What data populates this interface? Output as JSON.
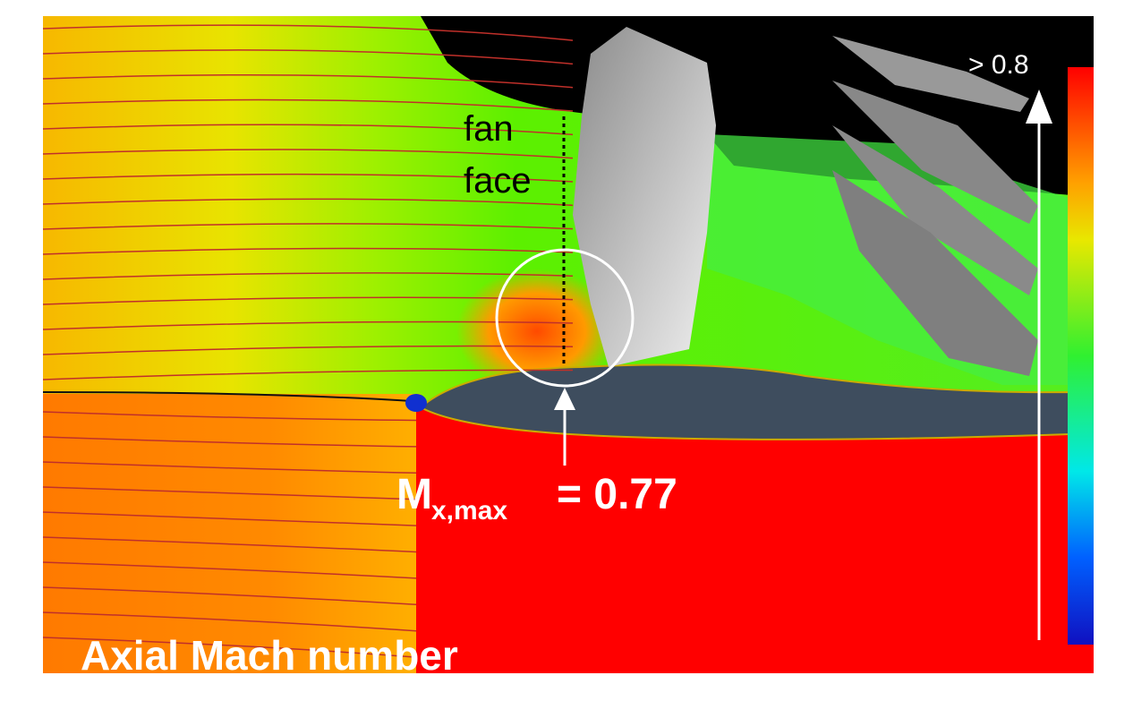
{
  "figure": {
    "labels": {
      "fan": "fan",
      "face": "face",
      "mach_symbol": "M",
      "mach_subscript": "x,max",
      "mach_value": "= 0.77",
      "colorbar_max": "> 0.8",
      "title": "Axial Mach number"
    }
  }
}
